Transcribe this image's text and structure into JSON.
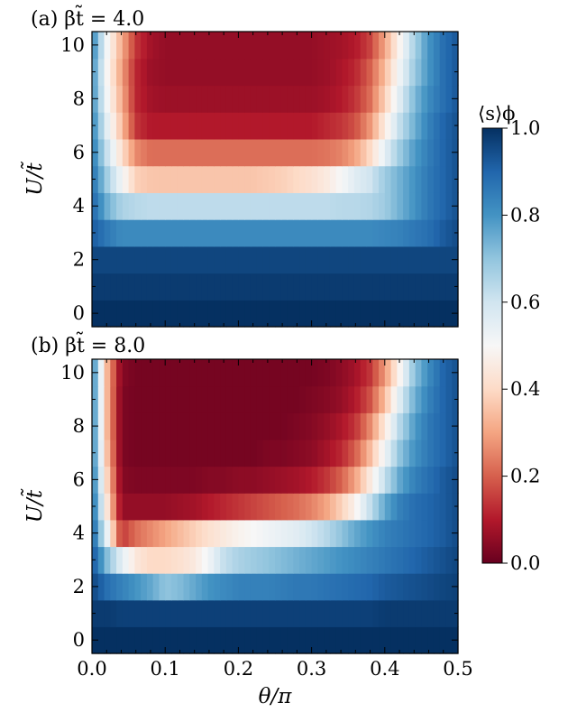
{
  "chart_data": [
    {
      "type": "heatmap",
      "panel_label": "(a) βt̃ = 4.0",
      "xlabel": "θ/π",
      "ylabel": "U/t̃",
      "xlim": [
        0.0,
        0.5
      ],
      "ylim": [
        -0.5,
        10.5
      ],
      "x_ticks": [
        "0.0",
        "0.1",
        "0.2",
        "0.3",
        "0.4",
        "0.5"
      ],
      "y_ticks": [
        "0",
        "2",
        "4",
        "6",
        "8",
        "10"
      ],
      "x_tick_labels_shown": false,
      "U_rows": [
        0,
        1,
        2,
        3,
        4,
        5,
        6,
        7,
        8,
        9,
        10
      ],
      "theta_points": [
        0.0,
        0.02,
        0.04,
        0.06,
        0.08,
        0.1,
        0.12,
        0.14,
        0.16,
        0.18,
        0.2,
        0.22,
        0.24,
        0.26,
        0.28,
        0.3,
        0.32,
        0.34,
        0.36,
        0.38,
        0.4,
        0.42,
        0.44,
        0.46,
        0.48,
        0.5
      ],
      "values": [
        [
          1.0,
          1.0,
          1.0,
          1.0,
          1.0,
          1.0,
          1.0,
          1.0,
          1.0,
          1.0,
          1.0,
          1.0,
          1.0,
          1.0,
          1.0,
          1.0,
          1.0,
          1.0,
          1.0,
          1.0,
          1.0,
          1.0,
          1.0,
          1.0,
          1.0,
          1.0
        ],
        [
          0.98,
          0.98,
          0.98,
          0.98,
          0.98,
          0.98,
          0.98,
          0.98,
          0.98,
          0.98,
          0.98,
          0.98,
          0.98,
          0.98,
          0.98,
          0.98,
          0.98,
          0.98,
          0.98,
          0.98,
          0.98,
          0.98,
          0.98,
          0.98,
          0.98,
          0.98
        ],
        [
          0.96,
          0.96,
          0.96,
          0.96,
          0.96,
          0.96,
          0.96,
          0.96,
          0.96,
          0.96,
          0.96,
          0.96,
          0.96,
          0.96,
          0.96,
          0.96,
          0.96,
          0.96,
          0.96,
          0.96,
          0.96,
          0.96,
          0.96,
          0.96,
          0.96,
          0.96
        ],
        [
          0.92,
          0.86,
          0.82,
          0.82,
          0.82,
          0.82,
          0.82,
          0.82,
          0.82,
          0.82,
          0.82,
          0.82,
          0.82,
          0.82,
          0.82,
          0.82,
          0.82,
          0.82,
          0.82,
          0.82,
          0.83,
          0.84,
          0.86,
          0.88,
          0.92,
          0.95
        ],
        [
          0.9,
          0.75,
          0.66,
          0.64,
          0.63,
          0.63,
          0.63,
          0.63,
          0.63,
          0.63,
          0.63,
          0.63,
          0.63,
          0.63,
          0.63,
          0.63,
          0.63,
          0.64,
          0.64,
          0.65,
          0.68,
          0.74,
          0.8,
          0.86,
          0.9,
          0.94
        ],
        [
          0.88,
          0.68,
          0.52,
          0.38,
          0.36,
          0.36,
          0.36,
          0.36,
          0.36,
          0.36,
          0.36,
          0.36,
          0.37,
          0.38,
          0.4,
          0.42,
          0.45,
          0.5,
          0.56,
          0.6,
          0.68,
          0.74,
          0.8,
          0.86,
          0.9,
          0.94
        ],
        [
          0.86,
          0.62,
          0.42,
          0.26,
          0.22,
          0.22,
          0.22,
          0.22,
          0.22,
          0.22,
          0.22,
          0.22,
          0.22,
          0.22,
          0.22,
          0.22,
          0.23,
          0.25,
          0.3,
          0.4,
          0.55,
          0.68,
          0.78,
          0.85,
          0.9,
          0.94
        ],
        [
          0.84,
          0.56,
          0.35,
          0.14,
          0.1,
          0.1,
          0.1,
          0.1,
          0.1,
          0.1,
          0.1,
          0.1,
          0.1,
          0.1,
          0.1,
          0.1,
          0.12,
          0.14,
          0.18,
          0.28,
          0.45,
          0.62,
          0.74,
          0.84,
          0.9,
          0.94
        ],
        [
          0.82,
          0.52,
          0.32,
          0.12,
          0.08,
          0.07,
          0.07,
          0.07,
          0.07,
          0.07,
          0.07,
          0.07,
          0.07,
          0.07,
          0.07,
          0.07,
          0.08,
          0.1,
          0.14,
          0.22,
          0.38,
          0.56,
          0.72,
          0.82,
          0.88,
          0.93
        ],
        [
          0.82,
          0.5,
          0.3,
          0.12,
          0.07,
          0.06,
          0.06,
          0.06,
          0.06,
          0.06,
          0.06,
          0.06,
          0.06,
          0.06,
          0.06,
          0.06,
          0.07,
          0.09,
          0.12,
          0.2,
          0.34,
          0.52,
          0.68,
          0.8,
          0.88,
          0.93
        ],
        [
          0.84,
          0.52,
          0.32,
          0.14,
          0.08,
          0.06,
          0.06,
          0.06,
          0.06,
          0.06,
          0.06,
          0.06,
          0.06,
          0.06,
          0.06,
          0.06,
          0.07,
          0.08,
          0.1,
          0.16,
          0.3,
          0.48,
          0.66,
          0.8,
          0.88,
          0.93
        ]
      ]
    },
    {
      "type": "heatmap",
      "panel_label": "(b) βt̃ = 8.0",
      "xlabel": "θ/π",
      "ylabel": "U/t̃",
      "xlim": [
        0.0,
        0.5
      ],
      "ylim": [
        -0.5,
        10.5
      ],
      "x_ticks": [
        "0.0",
        "0.1",
        "0.2",
        "0.3",
        "0.4",
        "0.5"
      ],
      "y_ticks": [
        "0",
        "2",
        "4",
        "6",
        "8",
        "10"
      ],
      "x_tick_labels_shown": true,
      "U_rows": [
        0,
        1,
        2,
        3,
        4,
        5,
        6,
        7,
        8,
        9,
        10
      ],
      "theta_points": [
        0.0,
        0.02,
        0.04,
        0.06,
        0.08,
        0.1,
        0.12,
        0.14,
        0.16,
        0.18,
        0.2,
        0.22,
        0.24,
        0.26,
        0.28,
        0.3,
        0.32,
        0.34,
        0.36,
        0.38,
        0.4,
        0.42,
        0.44,
        0.46,
        0.48,
        0.5
      ],
      "values": [
        [
          1.0,
          1.0,
          1.0,
          1.0,
          1.0,
          1.0,
          1.0,
          1.0,
          1.0,
          1.0,
          1.0,
          1.0,
          1.0,
          1.0,
          1.0,
          1.0,
          1.0,
          1.0,
          1.0,
          1.0,
          1.0,
          1.0,
          1.0,
          1.0,
          1.0,
          1.0
        ],
        [
          0.98,
          0.98,
          0.97,
          0.97,
          0.97,
          0.97,
          0.97,
          0.97,
          0.97,
          0.97,
          0.97,
          0.97,
          0.97,
          0.97,
          0.97,
          0.97,
          0.97,
          0.97,
          0.97,
          0.97,
          0.98,
          0.98,
          0.98,
          0.98,
          0.98,
          0.98
        ],
        [
          0.96,
          0.88,
          0.84,
          0.8,
          0.76,
          0.7,
          0.72,
          0.76,
          0.8,
          0.82,
          0.84,
          0.84,
          0.84,
          0.85,
          0.86,
          0.86,
          0.87,
          0.88,
          0.89,
          0.9,
          0.92,
          0.93,
          0.94,
          0.95,
          0.96,
          0.97
        ],
        [
          0.94,
          0.72,
          0.56,
          0.44,
          0.4,
          0.4,
          0.42,
          0.45,
          0.52,
          0.62,
          0.66,
          0.68,
          0.7,
          0.72,
          0.74,
          0.76,
          0.78,
          0.8,
          0.82,
          0.84,
          0.86,
          0.88,
          0.9,
          0.92,
          0.94,
          0.96
        ],
        [
          0.92,
          0.55,
          0.14,
          0.22,
          0.26,
          0.3,
          0.34,
          0.38,
          0.42,
          0.45,
          0.48,
          0.5,
          0.52,
          0.54,
          0.56,
          0.6,
          0.64,
          0.7,
          0.76,
          0.8,
          0.84,
          0.86,
          0.88,
          0.9,
          0.92,
          0.95
        ],
        [
          0.9,
          0.45,
          0.06,
          0.06,
          0.06,
          0.06,
          0.07,
          0.08,
          0.1,
          0.12,
          0.14,
          0.16,
          0.18,
          0.2,
          0.22,
          0.25,
          0.3,
          0.38,
          0.48,
          0.62,
          0.76,
          0.84,
          0.88,
          0.9,
          0.92,
          0.95
        ],
        [
          0.88,
          0.4,
          0.04,
          0.03,
          0.03,
          0.03,
          0.03,
          0.03,
          0.04,
          0.04,
          0.05,
          0.05,
          0.06,
          0.07,
          0.08,
          0.1,
          0.14,
          0.2,
          0.3,
          0.45,
          0.62,
          0.76,
          0.84,
          0.88,
          0.92,
          0.95
        ],
        [
          0.86,
          0.36,
          0.03,
          0.02,
          0.02,
          0.02,
          0.02,
          0.02,
          0.02,
          0.02,
          0.02,
          0.02,
          0.03,
          0.03,
          0.04,
          0.05,
          0.08,
          0.12,
          0.2,
          0.34,
          0.52,
          0.7,
          0.8,
          0.86,
          0.9,
          0.94
        ],
        [
          0.86,
          0.34,
          0.03,
          0.02,
          0.02,
          0.02,
          0.02,
          0.02,
          0.02,
          0.02,
          0.02,
          0.02,
          0.02,
          0.02,
          0.03,
          0.04,
          0.06,
          0.09,
          0.14,
          0.26,
          0.44,
          0.64,
          0.78,
          0.86,
          0.9,
          0.94
        ],
        [
          0.86,
          0.34,
          0.03,
          0.02,
          0.02,
          0.02,
          0.02,
          0.02,
          0.02,
          0.02,
          0.02,
          0.02,
          0.02,
          0.02,
          0.02,
          0.03,
          0.04,
          0.06,
          0.1,
          0.18,
          0.34,
          0.56,
          0.74,
          0.84,
          0.9,
          0.94
        ],
        [
          0.86,
          0.34,
          0.04,
          0.02,
          0.02,
          0.02,
          0.02,
          0.02,
          0.02,
          0.02,
          0.02,
          0.02,
          0.02,
          0.02,
          0.02,
          0.02,
          0.03,
          0.05,
          0.08,
          0.14,
          0.28,
          0.48,
          0.7,
          0.82,
          0.9,
          0.94
        ]
      ]
    }
  ],
  "colorbar": {
    "label": "⟨s⟩ϕ",
    "colormap": "RdBu",
    "range": [
      0.0,
      1.0
    ],
    "ticks": [
      "0.0",
      "0.2",
      "0.4",
      "0.6",
      "0.8",
      "1.0"
    ]
  }
}
